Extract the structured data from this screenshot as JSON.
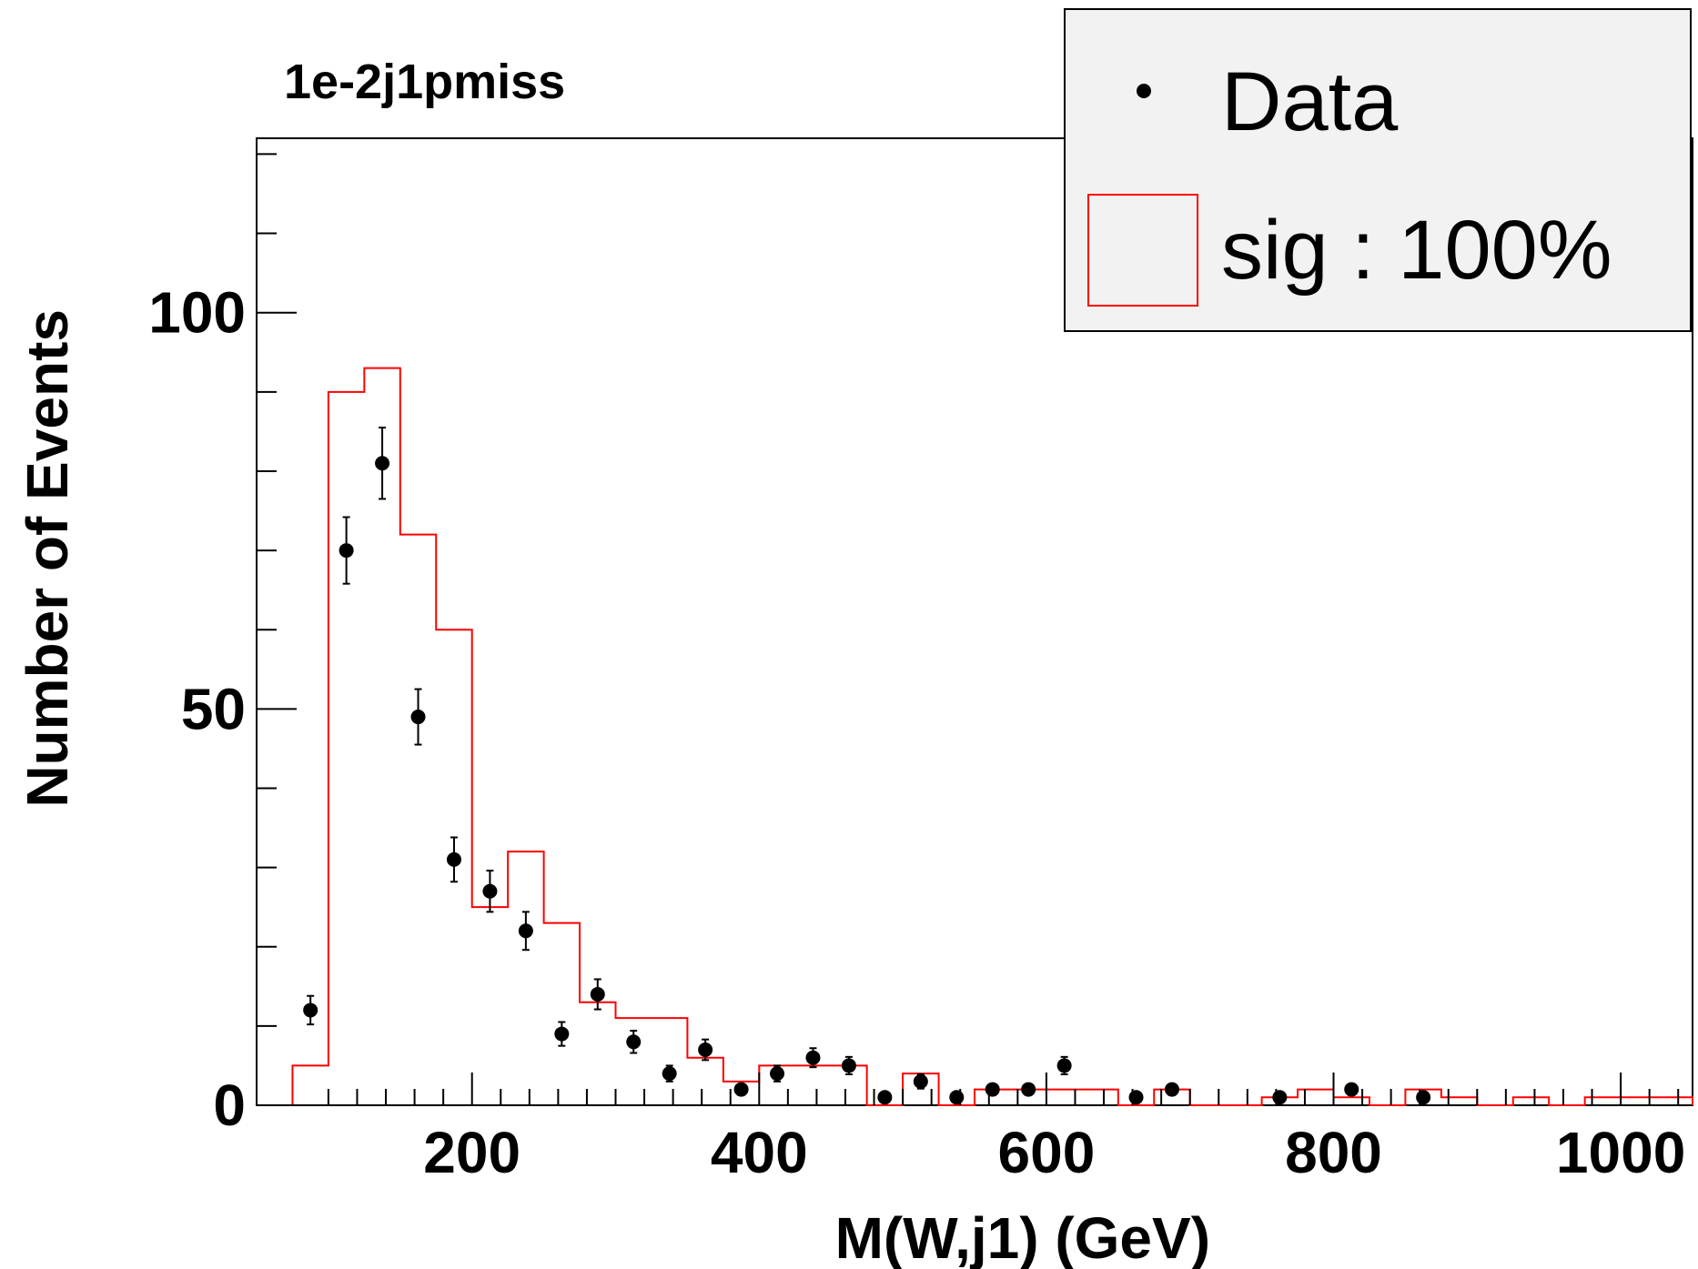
{
  "chart_data": {
    "type": "histogram",
    "title": "1e-2j1pmiss",
    "xlabel": "M(W,j1) (GeV)",
    "ylabel": "Number of Events",
    "xlim": [
      50,
      1050
    ],
    "ylim": [
      0,
      122
    ],
    "x_ticks": [
      200,
      400,
      600,
      800,
      1000
    ],
    "y_ticks": [
      0,
      50,
      100
    ],
    "y_minor_step": 10,
    "legend": {
      "position": "top-right",
      "entries": [
        "Data",
        "sig : 100%"
      ]
    },
    "colors": {
      "signal": "#ff0000",
      "data": "#000000",
      "legend_bg": "#f2f2f2"
    },
    "signal_hist": {
      "name": "sig : 100%",
      "bin_edges": [
        75,
        100,
        125,
        150,
        175,
        200,
        225,
        250,
        275,
        300,
        325,
        350,
        375,
        400,
        425,
        450,
        475,
        500,
        525,
        550,
        575,
        600,
        625,
        650,
        675,
        700,
        725,
        750,
        775,
        800,
        825,
        850,
        875,
        900,
        925,
        950,
        975,
        1000,
        1025,
        1050
      ],
      "values": [
        5,
        90,
        93,
        72,
        60,
        25,
        32,
        23,
        13,
        11,
        11,
        6,
        3,
        5,
        5,
        5,
        0,
        4,
        0,
        2,
        2,
        2,
        2,
        0,
        2,
        0,
        0,
        1,
        2,
        1,
        0,
        2,
        1,
        0,
        1,
        0,
        1,
        1,
        1
      ]
    },
    "data_points": {
      "name": "Data",
      "x": [
        87.5,
        112.5,
        137.5,
        162.5,
        187.5,
        212.5,
        237.5,
        262.5,
        287.5,
        312.5,
        337.5,
        362.5,
        387.5,
        412.5,
        437.5,
        462.5,
        487.5,
        512.5,
        537.5,
        562.5,
        587.5,
        612.5,
        662.5,
        687.5,
        762.5,
        812.5,
        862.5
      ],
      "y": [
        12,
        70,
        81,
        49,
        31,
        27,
        22,
        9,
        14,
        8,
        4,
        7,
        2,
        4,
        6,
        5,
        1,
        3,
        1,
        2,
        2,
        5,
        1,
        2,
        1,
        2,
        1
      ],
      "err": [
        1.8,
        4.2,
        4.5,
        3.5,
        2.8,
        2.6,
        2.4,
        1.5,
        1.9,
        1.4,
        1.0,
        1.3,
        0.7,
        1.0,
        1.2,
        1.1,
        0.2,
        0.9,
        0.2,
        0.7,
        0.7,
        1.1,
        0.2,
        0.7,
        0.2,
        0.7,
        0.2
      ]
    }
  }
}
